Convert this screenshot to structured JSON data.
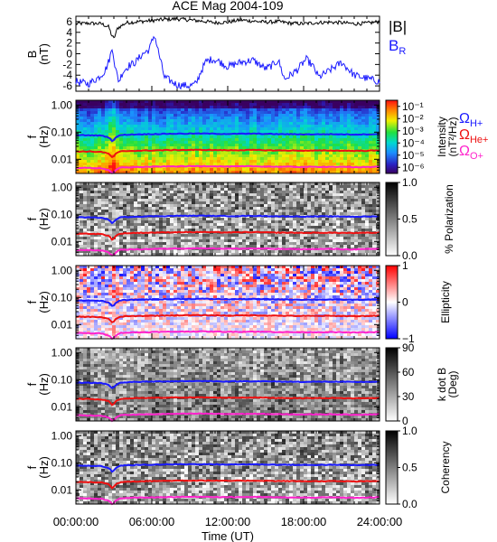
{
  "title": "ACE Mag 2004-109",
  "colors": {
    "b_total": "#000000",
    "b_r": "#1a1aff",
    "ch_h": "#1a1aff",
    "ch_he": "#ee1111",
    "ch_o": "#ff22cc"
  },
  "chart_data": [
    {
      "type": "line",
      "name": "b-panel",
      "ylabel": "B (nT)",
      "ylabel_lines": [
        "B",
        "(nT)"
      ],
      "ylim": [
        -7,
        7
      ],
      "yticks": [
        "6",
        "4",
        "2",
        "0",
        "-2",
        "-4",
        "-6"
      ],
      "ytick_values": [
        6,
        4,
        2,
        0,
        -2,
        -4,
        -6
      ],
      "series": [
        {
          "name": "|B|",
          "x_hours": [
            0,
            1,
            2,
            2.6,
            2.8,
            3.0,
            3.3,
            4,
            5,
            6,
            7,
            8,
            9,
            10,
            11,
            12,
            13,
            14,
            15,
            16,
            17,
            18,
            19,
            20,
            21,
            22,
            23,
            24
          ],
          "values": [
            5.6,
            5.7,
            5.6,
            5.0,
            3.6,
            2.8,
            4.8,
            5.8,
            6.0,
            6.2,
            6.4,
            6.5,
            6.3,
            6.1,
            5.8,
            5.9,
            6.3,
            6.1,
            5.9,
            6.0,
            5.7,
            5.6,
            5.8,
            5.9,
            5.8,
            5.6,
            5.7,
            6.0
          ]
        },
        {
          "name": "B_R",
          "label_main": "B",
          "label_sub": "R",
          "x_hours": [
            0,
            1,
            1.8,
            2.3,
            2.6,
            2.9,
            3.1,
            3.4,
            3.7,
            4.2,
            4.7,
            5.2,
            5.8,
            6.2,
            7,
            8,
            9,
            9.5,
            9.9,
            10.3,
            10.8,
            11.3,
            12,
            13,
            14,
            15,
            15.5,
            16,
            16.5,
            17.5,
            18.2,
            18.7,
            19.2,
            20,
            21,
            22,
            23,
            24
          ],
          "values": [
            -5.2,
            -5.6,
            -4.4,
            -3.2,
            -1.4,
            1.2,
            -2.6,
            -5.2,
            -3.4,
            -2.2,
            -1.6,
            -0.2,
            0.8,
            3.6,
            -4.4,
            -5.8,
            -6.0,
            -5.6,
            -3.2,
            -1.4,
            -1.0,
            -1.4,
            -2.4,
            -1.6,
            -1.2,
            -2.8,
            -2.2,
            -1.2,
            -4.8,
            -3.0,
            -1.0,
            -2.2,
            -4.4,
            -3.2,
            -1.6,
            -4.0,
            -4.6,
            -5.2
          ]
        }
      ]
    },
    {
      "type": "heatmap",
      "name": "intensity-panel",
      "ylabel_lines": [
        "f",
        "(Hz)"
      ],
      "colorbar_label_lines": [
        "Intensity",
        "(nT²/Hz)"
      ],
      "colorbar_ticks": [
        "10⁻¹",
        "10⁻²",
        "10⁻³",
        "10⁻⁴",
        "10⁻⁵",
        "10⁻⁶"
      ],
      "colorbar_tick_values": [
        -1,
        -2,
        -3,
        -4,
        -5,
        -6
      ],
      "colorbar_range": [
        -6.5,
        -0.5
      ],
      "legend": [
        {
          "main": "Ω",
          "sub": "H+",
          "color": "#1a1aff"
        },
        {
          "main": "Ω",
          "sub": "He+",
          "color": "#ee1111"
        },
        {
          "main": "Ω",
          "sub": "O+",
          "color": "#ff22cc"
        }
      ]
    },
    {
      "type": "heatmap",
      "name": "polarization-panel",
      "ylabel_lines": [
        "f",
        "(Hz)"
      ],
      "colorbar_label": "% Polarization",
      "colorbar_ticks": [
        "1.0",
        "0.5",
        "0.0"
      ],
      "colorbar_tick_values": [
        1.0,
        0.5,
        0.0
      ],
      "colorbar_range": [
        0,
        1
      ]
    },
    {
      "type": "heatmap",
      "name": "ellipticity-panel",
      "ylabel_lines": [
        "f",
        "(Hz)"
      ],
      "colorbar_label": "Ellipticity",
      "colorbar_ticks": [
        "1",
        "0",
        "−1"
      ],
      "colorbar_tick_values": [
        1,
        0,
        -1
      ],
      "colorbar_range": [
        -1,
        1
      ]
    },
    {
      "type": "heatmap",
      "name": "kdotb-panel",
      "ylabel_lines": [
        "f",
        "(Hz)"
      ],
      "colorbar_label_lines": [
        "k dot B",
        "(Deg)"
      ],
      "colorbar_ticks": [
        "90",
        "60",
        "30",
        "0"
      ],
      "colorbar_tick_values": [
        90,
        60,
        30,
        0
      ],
      "colorbar_range": [
        0,
        90
      ]
    },
    {
      "type": "heatmap",
      "name": "coherency-panel",
      "ylabel_lines": [
        "f",
        "(Hz)"
      ],
      "colorbar_label": "Coherency",
      "colorbar_ticks": [
        "1.0",
        "0.5",
        "0.0"
      ],
      "colorbar_tick_values": [
        1.0,
        0.5,
        0.0
      ],
      "colorbar_range": [
        0,
        1
      ]
    }
  ],
  "freq_axis": {
    "scale": "log",
    "ylim_hz": [
      0.003,
      1.5
    ],
    "tick_labels": [
      "1.00",
      "0.10",
      "0.01"
    ],
    "tick_values": [
      1.0,
      0.1,
      0.01
    ]
  },
  "gyro_lines": {
    "x_hours": [
      0,
      1,
      2,
      2.6,
      2.9,
      3.2,
      3.6,
      4.5,
      6,
      8,
      10,
      12,
      14,
      16,
      18,
      20,
      22,
      24
    ],
    "h_plus": [
      0.078,
      0.077,
      0.075,
      0.064,
      0.045,
      0.067,
      0.079,
      0.082,
      0.085,
      0.088,
      0.089,
      0.086,
      0.088,
      0.085,
      0.083,
      0.084,
      0.082,
      0.084
    ],
    "he_plus": [
      0.0195,
      0.0193,
      0.0188,
      0.016,
      0.0112,
      0.0168,
      0.0198,
      0.0205,
      0.0212,
      0.022,
      0.0222,
      0.0215,
      0.022,
      0.0212,
      0.0208,
      0.021,
      0.0205,
      0.021
    ],
    "o_plus": [
      0.0049,
      0.0048,
      0.0047,
      0.004,
      0.0028,
      0.0042,
      0.005,
      0.0051,
      0.0053,
      0.0055,
      0.0056,
      0.0054,
      0.0055,
      0.0053,
      0.0052,
      0.0053,
      0.0051,
      0.0053
    ]
  },
  "x_axis": {
    "label": "Time (UT)",
    "range_hours": [
      0,
      24
    ],
    "tick_labels": [
      "00:00:00",
      "06:00:00",
      "12:00:00",
      "18:00:00",
      "24:00:00"
    ],
    "tick_hours": [
      0,
      6,
      12,
      18,
      24
    ]
  }
}
